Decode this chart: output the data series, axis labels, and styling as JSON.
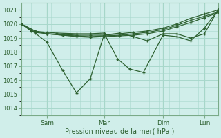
{
  "title": "",
  "xlabel": "Pression niveau de la mer( hPa )",
  "bg_color": "#d0eeea",
  "grid_color": "#a8d8cc",
  "line_color": "#2d6030",
  "ylim": [
    1013.5,
    1021.5
  ],
  "yticks": [
    1014,
    1015,
    1016,
    1017,
    1018,
    1019,
    1020,
    1021
  ],
  "vline_positions": [
    0.13,
    0.42,
    0.72,
    0.93
  ],
  "xtick_labels": [
    "Sam",
    "Mar",
    "Dim",
    "Lun"
  ],
  "series": [
    {
      "x": [
        0.0,
        0.07,
        0.13,
        0.21,
        0.28,
        0.35,
        0.42,
        0.5,
        0.57,
        0.64,
        0.72,
        0.79,
        0.86,
        0.93,
        1.0
      ],
      "y": [
        1020.0,
        1019.5,
        1019.3,
        1019.25,
        1019.2,
        1019.2,
        1019.2,
        1019.3,
        1019.4,
        1019.5,
        1019.7,
        1020.0,
        1020.4,
        1020.7,
        1021.0
      ]
    },
    {
      "x": [
        0.0,
        0.07,
        0.13,
        0.21,
        0.28,
        0.35,
        0.42,
        0.5,
        0.57,
        0.64,
        0.72,
        0.79,
        0.86,
        0.93,
        1.0
      ],
      "y": [
        1020.0,
        1019.5,
        1019.3,
        1019.2,
        1019.15,
        1019.1,
        1019.15,
        1019.2,
        1019.3,
        1019.4,
        1019.6,
        1019.9,
        1020.25,
        1020.55,
        1020.85
      ]
    },
    {
      "x": [
        0.0,
        0.07,
        0.13,
        0.21,
        0.28,
        0.35,
        0.42,
        0.5,
        0.57,
        0.64,
        0.72,
        0.79,
        0.86,
        0.93,
        1.0
      ],
      "y": [
        1020.0,
        1019.4,
        1019.3,
        1019.2,
        1019.1,
        1019.05,
        1019.1,
        1019.15,
        1019.2,
        1019.3,
        1019.5,
        1019.8,
        1020.1,
        1020.45,
        1020.8
      ]
    },
    {
      "x": [
        0.0,
        0.07,
        0.13,
        0.21,
        0.28,
        0.35,
        0.42,
        0.5,
        0.57,
        0.64,
        0.72,
        0.79,
        0.86,
        0.93,
        1.0
      ],
      "y": [
        1020.0,
        1019.35,
        1018.7,
        1016.7,
        1015.1,
        1016.1,
        1019.2,
        1019.35,
        1019.1,
        1018.8,
        1019.3,
        1019.3,
        1019.0,
        1019.3,
        1021.0
      ]
    },
    {
      "x": [
        0.0,
        0.05,
        0.13,
        0.18,
        0.28,
        0.35,
        0.42,
        0.49,
        0.55,
        0.62,
        0.72,
        0.79,
        0.86,
        0.93,
        1.0
      ],
      "y": [
        1020.0,
        1019.5,
        1019.4,
        1019.35,
        1019.3,
        1019.3,
        1019.35,
        1017.5,
        1016.8,
        1016.55,
        1019.2,
        1019.1,
        1018.8,
        1019.7,
        1021.0
      ]
    }
  ]
}
